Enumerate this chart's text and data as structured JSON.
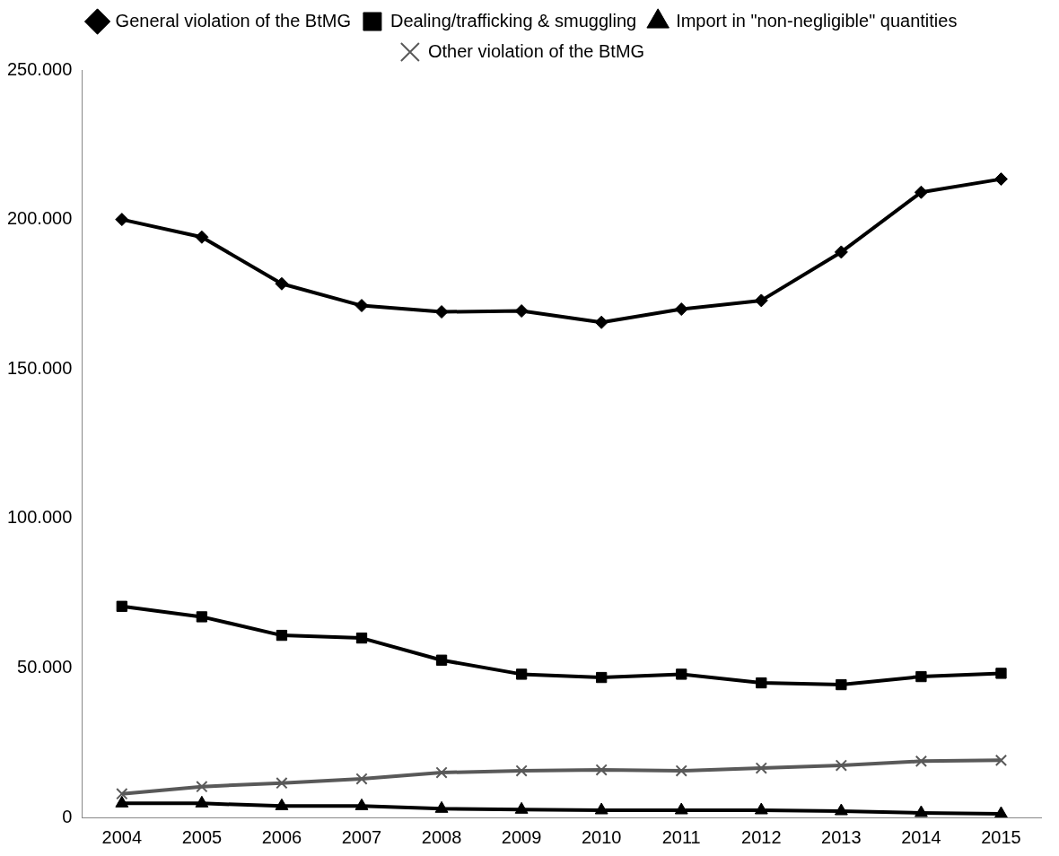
{
  "chart_data": {
    "type": "line",
    "categories": [
      "2004",
      "2005",
      "2006",
      "2007",
      "2008",
      "2009",
      "2010",
      "2011",
      "2012",
      "2013",
      "2014",
      "2015"
    ],
    "ylim": [
      0,
      250000
    ],
    "yticks": [
      {
        "value": 0,
        "label": "0"
      },
      {
        "value": 50000,
        "label": "50.000"
      },
      {
        "value": 100000,
        "label": "100.000"
      },
      {
        "value": 150000,
        "label": "150.000"
      },
      {
        "value": 200000,
        "label": "200.000"
      },
      {
        "value": 250000,
        "label": "250.000"
      }
    ],
    "grid": false,
    "legend": "top",
    "line_style": "solid",
    "series": [
      {
        "name": "General violation of the BtMG",
        "color": "#000000",
        "marker": "diamond",
        "values": [
          200000,
          194100,
          178500,
          171200,
          169100,
          169400,
          165600,
          170000,
          172900,
          189100,
          209100,
          213500
        ]
      },
      {
        "name": "Dealing/trafficking & smuggling",
        "color": "#000000",
        "marker": "square",
        "values": [
          70600,
          67100,
          60900,
          60000,
          52600,
          47900,
          46800,
          47900,
          45000,
          44400,
          47100,
          48200
        ]
      },
      {
        "name": "Import in \"non-negligible\" quantities",
        "color": "#000000",
        "marker": "triangle",
        "values": [
          4700,
          4700,
          3800,
          3800,
          2900,
          2600,
          2400,
          2400,
          2400,
          2100,
          1500,
          1200
        ]
      },
      {
        "name": "Other violation of the BtMG",
        "color": "#595959",
        "marker": "cross",
        "values": [
          7900,
          10300,
          11500,
          12900,
          15000,
          15600,
          15900,
          15600,
          16500,
          17400,
          18800,
          19100
        ]
      }
    ]
  }
}
